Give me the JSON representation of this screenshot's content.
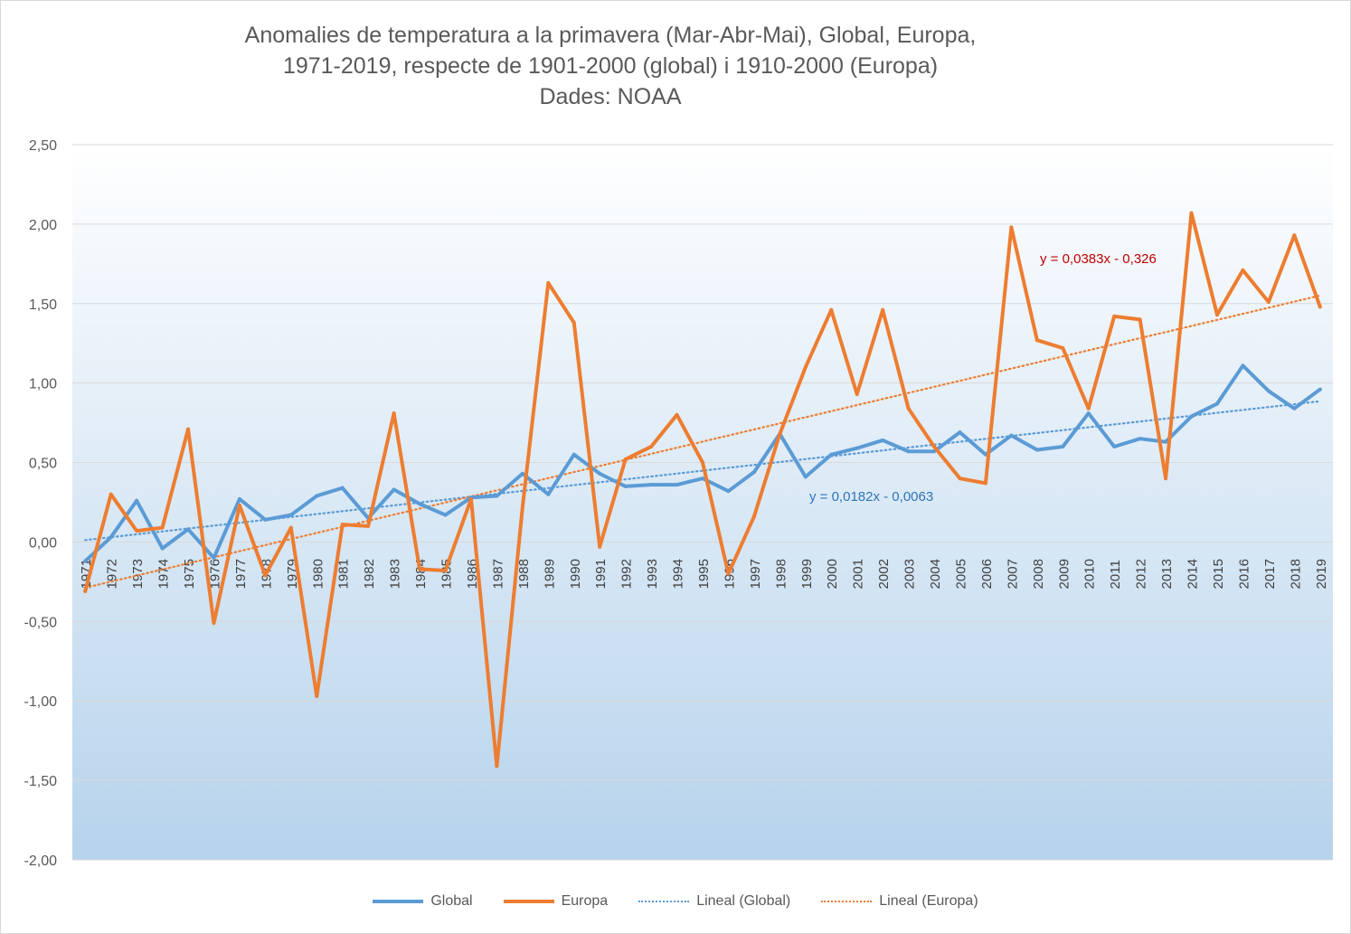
{
  "chart_data": {
    "type": "line",
    "title": "Anomalies de temperatura a la primavera (Mar-Abr-Mai), Global, Europa,",
    "subtitle": "1971-2019, respecte de 1901-2000 (global) i 1910-2000 (Europa)",
    "source": "Dades: NOAA",
    "xlabel": "",
    "ylabel": "",
    "ylim": [
      -2.0,
      2.5
    ],
    "yticks": [
      "2,50",
      "2,00",
      "1,50",
      "1,00",
      "0,50",
      "0,00",
      "-0,50",
      "-1,00",
      "-1,50",
      "-2,00"
    ],
    "ytick_values": [
      2.5,
      2.0,
      1.5,
      1.0,
      0.5,
      0.0,
      -0.5,
      -1.0,
      -1.5,
      -2.0
    ],
    "grid": true,
    "legend_position": "bottom",
    "categories": [
      "1971",
      "1972",
      "1973",
      "1974",
      "1975",
      "1976",
      "1977",
      "1978",
      "1979",
      "1980",
      "1981",
      "1982",
      "1983",
      "1984",
      "1985",
      "1986",
      "1987",
      "1988",
      "1989",
      "1990",
      "1991",
      "1992",
      "1993",
      "1994",
      "1995",
      "1996",
      "1997",
      "1998",
      "1999",
      "2000",
      "2001",
      "2002",
      "2003",
      "2004",
      "2005",
      "2006",
      "2007",
      "2008",
      "2009",
      "2010",
      "2011",
      "2012",
      "2013",
      "2014",
      "2015",
      "2016",
      "2017",
      "2018",
      "2019"
    ],
    "series": [
      {
        "name": "Global",
        "color": "#5b9bd5",
        "values": [
          -0.12,
          0.03,
          0.26,
          -0.04,
          0.08,
          -0.1,
          0.27,
          0.14,
          0.17,
          0.29,
          0.34,
          0.15,
          0.33,
          0.24,
          0.17,
          0.28,
          0.29,
          0.43,
          0.3,
          0.55,
          0.43,
          0.35,
          0.36,
          0.36,
          0.4,
          0.32,
          0.44,
          0.68,
          0.41,
          0.55,
          0.59,
          0.64,
          0.57,
          0.57,
          0.69,
          0.55,
          0.67,
          0.58,
          0.6,
          0.81,
          0.6,
          0.65,
          0.63,
          0.79,
          0.87,
          1.11,
          0.95,
          0.84,
          0.96
        ]
      },
      {
        "name": "Europa",
        "color": "#ed7d31",
        "values": [
          -0.31,
          0.3,
          0.07,
          0.09,
          0.71,
          -0.51,
          0.23,
          -0.21,
          0.09,
          -0.97,
          0.11,
          0.1,
          0.81,
          -0.17,
          -0.18,
          0.27,
          -1.41,
          0.22,
          1.63,
          1.38,
          -0.03,
          0.52,
          0.6,
          0.8,
          0.5,
          -0.2,
          0.16,
          0.68,
          1.1,
          1.46,
          0.93,
          1.46,
          0.84,
          0.6,
          0.4,
          0.37,
          1.98,
          1.27,
          1.22,
          0.84,
          1.42,
          1.4,
          0.4,
          2.07,
          1.43,
          1.71,
          1.51,
          1.93,
          1.48
        ]
      }
    ],
    "trendlines": [
      {
        "name": "Lineal  (Global)",
        "color": "#5b9bd5",
        "slope": 0.0182,
        "intercept": -0.0063,
        "equation": "y = 0,0182x - 0,0063",
        "equation_color": "#2e75b6"
      },
      {
        "name": "Lineal  (Europa)",
        "color": "#ed7d31",
        "slope": 0.0383,
        "intercept": -0.326,
        "equation": "y = 0,0383x - 0,326",
        "equation_color": "#c00000"
      }
    ],
    "colors": {
      "plot_top": "#ffffff",
      "plot_bottom": "#b6d3ec",
      "grid": "#d9d9d9",
      "text": "#595959"
    }
  }
}
